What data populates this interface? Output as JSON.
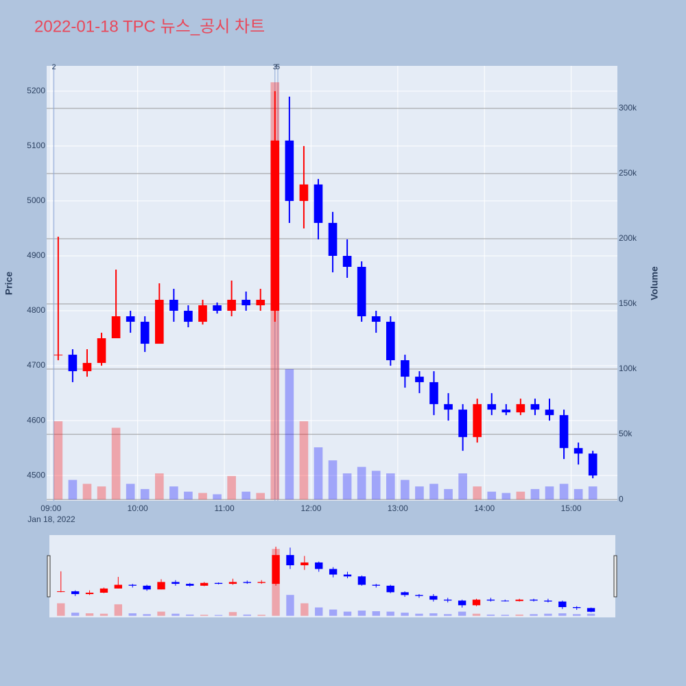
{
  "chart_data": {
    "type": "candlestick",
    "title": "2022-01-18 TPC 뉴스_공시 차트",
    "date_label": "Jan 18, 2022",
    "y_label": "Price",
    "y2_label": "Volume",
    "increasing_color": "#ff0000",
    "decreasing_color": "#0000ff",
    "xlim": [
      "08:57",
      "15:32"
    ],
    "xticks": [
      "09:00",
      "10:00",
      "11:00",
      "12:00",
      "13:00",
      "14:00",
      "15:00"
    ],
    "ylim": [
      4454,
      5246
    ],
    "yticks": [
      4500,
      4600,
      4700,
      4800,
      4900,
      5000,
      5100,
      5200
    ],
    "y2lim": [
      -1000,
      332600
    ],
    "y2ticks": [
      0,
      {
        "value": 50000,
        "label": "50k"
      },
      {
        "value": 100000,
        "label": "100k"
      },
      {
        "value": 150000,
        "label": "150k"
      },
      {
        "value": 200000,
        "label": "200k"
      },
      {
        "value": 250000,
        "label": "250k"
      },
      {
        "value": 300000,
        "label": "300k"
      }
    ],
    "grid": true,
    "annotations": [
      {
        "x": "09:02",
        "label": "2"
      },
      {
        "x": "11:35",
        "label": "3"
      },
      {
        "x": "11:37",
        "label": "5"
      }
    ],
    "x": [
      "09:00",
      "09:10",
      "09:20",
      "09:30",
      "09:40",
      "09:50",
      "10:00",
      "10:10",
      "10:20",
      "10:30",
      "10:40",
      "10:50",
      "11:00",
      "11:10",
      "11:20",
      "11:30",
      "11:40",
      "11:50",
      "12:00",
      "12:10",
      "12:20",
      "12:30",
      "12:40",
      "12:50",
      "13:00",
      "13:10",
      "13:20",
      "13:30",
      "13:40",
      "13:50",
      "14:00",
      "14:10",
      "14:20",
      "14:30",
      "14:40",
      "14:50",
      "15:00",
      "15:10"
    ],
    "open": [
      4720,
      4720,
      4690,
      4705,
      4750,
      4790,
      4780,
      4740,
      4820,
      4800,
      4780,
      4810,
      4800,
      4820,
      4810,
      4800,
      5110,
      5000,
      5030,
      4960,
      4900,
      4880,
      4790,
      4780,
      4710,
      4680,
      4670,
      4630,
      4620,
      4570,
      4630,
      4620,
      4615,
      4630,
      4620,
      4610,
      4550,
      4540
    ],
    "high": [
      4935,
      4730,
      4730,
      4760,
      4875,
      4800,
      4790,
      4850,
      4840,
      4810,
      4820,
      4815,
      4855,
      4835,
      4840,
      5200,
      5190,
      5100,
      5040,
      4980,
      4930,
      4890,
      4800,
      4790,
      4720,
      4690,
      4690,
      4650,
      4630,
      4640,
      4650,
      4630,
      4640,
      4640,
      4640,
      4620,
      4560,
      4545
    ],
    "low": [
      4710,
      4670,
      4680,
      4700,
      4750,
      4760,
      4725,
      4740,
      4780,
      4770,
      4775,
      4795,
      4790,
      4800,
      4800,
      4780,
      4960,
      4950,
      4930,
      4870,
      4860,
      4780,
      4760,
      4700,
      4660,
      4650,
      4610,
      4600,
      4545,
      4560,
      4610,
      4610,
      4610,
      4610,
      4600,
      4530,
      4520,
      4495
    ],
    "close": [
      4720,
      4690,
      4705,
      4750,
      4790,
      4780,
      4740,
      4820,
      4800,
      4780,
      4810,
      4800,
      4820,
      4810,
      4820,
      5110,
      5000,
      5030,
      4960,
      4900,
      4880,
      4790,
      4780,
      4710,
      4680,
      4670,
      4630,
      4620,
      4570,
      4630,
      4620,
      4615,
      4630,
      4620,
      4610,
      4550,
      4540,
      4500
    ],
    "volume": [
      60000,
      15000,
      12000,
      10000,
      55000,
      12000,
      8000,
      20000,
      10000,
      6000,
      5000,
      4000,
      18000,
      6000,
      5000,
      320000,
      100000,
      60000,
      40000,
      30000,
      20000,
      25000,
      22000,
      20000,
      15000,
      10000,
      12000,
      8000,
      20000,
      10000,
      6000,
      5000,
      6000,
      8000,
      10000,
      12000,
      8000,
      10000
    ]
  }
}
